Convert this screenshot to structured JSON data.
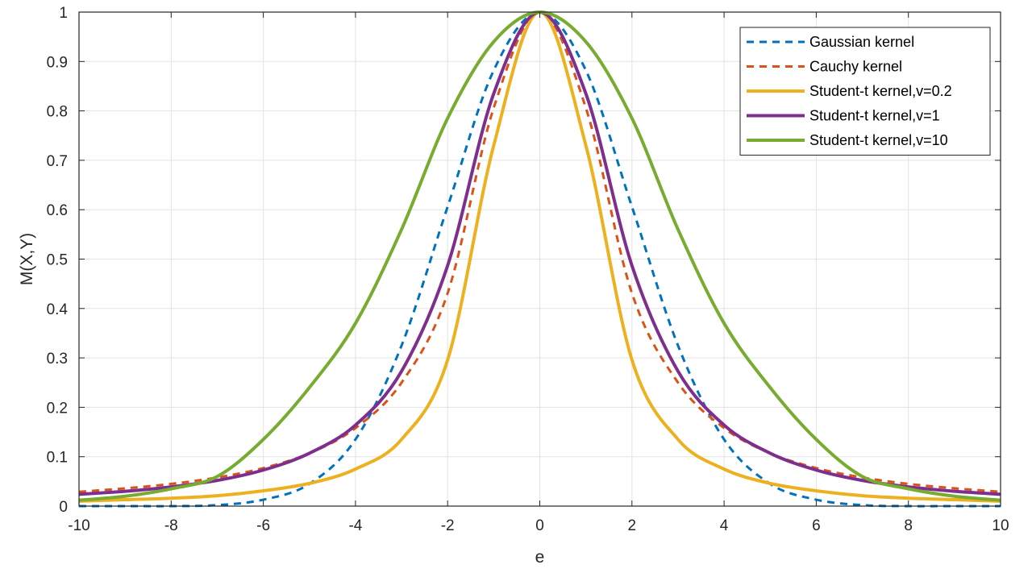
{
  "chart_data": {
    "type": "line",
    "title": "",
    "xlabel": "e",
    "ylabel": "M(X,Y)",
    "xlim": [
      -10,
      10
    ],
    "ylim": [
      0,
      1
    ],
    "xticks": [
      "-10",
      "-8",
      "-6",
      "-4",
      "-2",
      "0",
      "2",
      "4",
      "6",
      "8",
      "10"
    ],
    "yticks": [
      "0",
      "0.1",
      "0.2",
      "0.3",
      "0.4",
      "0.5",
      "0.6",
      "0.7",
      "0.8",
      "0.9",
      "1"
    ],
    "grid": true,
    "legend_position": "top-right",
    "x": [
      -10,
      -9,
      -8,
      -7,
      -6,
      -5,
      -4,
      -3,
      -2,
      -1,
      0,
      1,
      2,
      3,
      4,
      5,
      6,
      7,
      8,
      9,
      10
    ],
    "series": [
      {
        "name": "Gaussian kernel",
        "color": "#0072BD",
        "style": "dashed",
        "values": [
          0.0,
          0.0,
          0.0,
          0.002,
          0.013,
          0.045,
          0.135,
          0.325,
          0.606,
          0.882,
          1.0,
          0.882,
          0.606,
          0.325,
          0.135,
          0.045,
          0.013,
          0.002,
          0.0,
          0.0,
          0.0
        ]
      },
      {
        "name": "Cauchy kernel",
        "color": "#D95319",
        "style": "dashed",
        "values": [
          0.029,
          0.036,
          0.045,
          0.058,
          0.077,
          0.107,
          0.158,
          0.25,
          0.431,
          0.806,
          1.0,
          0.806,
          0.431,
          0.25,
          0.158,
          0.107,
          0.077,
          0.058,
          0.045,
          0.036,
          0.029
        ]
      },
      {
        "name": "Student-t kernel,v=0.2",
        "color": "#EDB120",
        "style": "solid",
        "values": [
          0.01,
          0.013,
          0.016,
          0.021,
          0.031,
          0.046,
          0.075,
          0.135,
          0.296,
          0.73,
          1.0,
          0.73,
          0.296,
          0.135,
          0.075,
          0.046,
          0.031,
          0.021,
          0.016,
          0.013,
          0.01
        ]
      },
      {
        "name": "Student-t kernel,v=1",
        "color": "#7E2F8E",
        "style": "solid",
        "values": [
          0.024,
          0.03,
          0.039,
          0.052,
          0.073,
          0.107,
          0.164,
          0.273,
          0.487,
          0.835,
          1.0,
          0.835,
          0.487,
          0.273,
          0.164,
          0.107,
          0.073,
          0.052,
          0.039,
          0.03,
          0.024
        ]
      },
      {
        "name": "Student-t kernel,v=10",
        "color": "#77AC30",
        "style": "solid",
        "values": [
          0.012,
          0.02,
          0.035,
          0.06,
          0.135,
          0.24,
          0.37,
          0.56,
          0.785,
          0.94,
          1.0,
          0.94,
          0.785,
          0.56,
          0.37,
          0.24,
          0.135,
          0.06,
          0.035,
          0.02,
          0.012
        ]
      }
    ]
  }
}
